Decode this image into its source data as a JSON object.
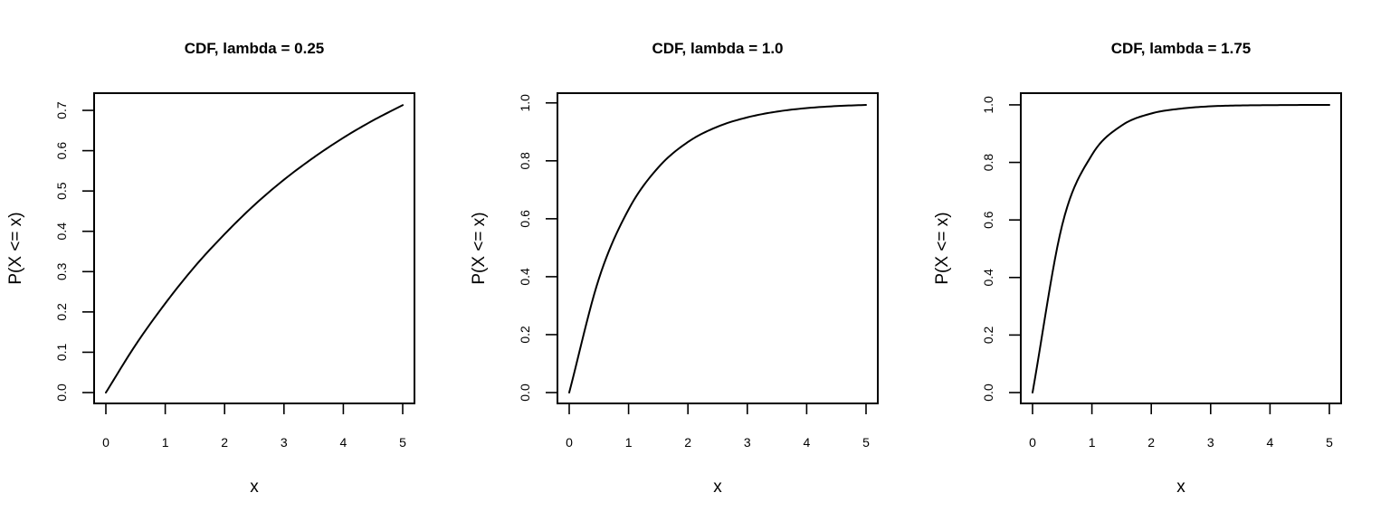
{
  "chart_data": [
    {
      "type": "line",
      "title": "CDF, lambda = 0.25",
      "xlabel": "x",
      "ylabel": "P(X <= x)",
      "lambda": 0.25,
      "xlim": [
        0,
        5
      ],
      "ylim": [
        0,
        0.7135
      ],
      "x_ticks": [
        "0",
        "1",
        "2",
        "3",
        "4",
        "5"
      ],
      "y_ticks": [
        "0.0",
        "0.1",
        "0.2",
        "0.3",
        "0.4",
        "0.5",
        "0.6",
        "0.7"
      ],
      "grid": false,
      "legend": "none",
      "series": [
        {
          "x": [
            0,
            0.5,
            1,
            1.5,
            2,
            2.5,
            3,
            3.5,
            4,
            4.5,
            5
          ],
          "values": [
            0,
            0.118,
            0.221,
            0.313,
            0.393,
            0.465,
            0.528,
            0.583,
            0.632,
            0.675,
            0.713
          ]
        }
      ]
    },
    {
      "type": "line",
      "title": "CDF, lambda = 1.0",
      "xlabel": "x",
      "ylabel": "P(X <= x)",
      "lambda": 1.0,
      "xlim": [
        0,
        5
      ],
      "ylim": [
        0,
        0.993
      ],
      "x_ticks": [
        "0",
        "1",
        "2",
        "3",
        "4",
        "5"
      ],
      "y_ticks": [
        "0.0",
        "0.2",
        "0.4",
        "0.6",
        "0.8",
        "1.0"
      ],
      "grid": false,
      "legend": "none",
      "series": [
        {
          "x": [
            0,
            0.5,
            1,
            1.5,
            2,
            2.5,
            3,
            3.5,
            4,
            4.5,
            5
          ],
          "values": [
            0,
            0.393,
            0.632,
            0.777,
            0.865,
            0.918,
            0.95,
            0.97,
            0.982,
            0.989,
            0.993
          ]
        }
      ]
    },
    {
      "type": "line",
      "title": "CDF, lambda = 1.75",
      "xlabel": "x",
      "ylabel": "P(X <= x)",
      "lambda": 1.75,
      "xlim": [
        0,
        5
      ],
      "ylim": [
        0,
        0.9998
      ],
      "x_ticks": [
        "0",
        "1",
        "2",
        "3",
        "4",
        "5"
      ],
      "y_ticks": [
        "0.0",
        "0.2",
        "0.4",
        "0.6",
        "0.8",
        "1.0"
      ],
      "grid": false,
      "legend": "none",
      "series": [
        {
          "x": [
            0,
            0.5,
            1,
            1.5,
            2,
            2.5,
            3,
            3.5,
            4,
            4.5,
            5
          ],
          "values": [
            0,
            0.583,
            0.826,
            0.928,
            0.97,
            0.987,
            0.995,
            0.998,
            0.999,
            0.9996,
            0.9998
          ]
        }
      ]
    }
  ]
}
